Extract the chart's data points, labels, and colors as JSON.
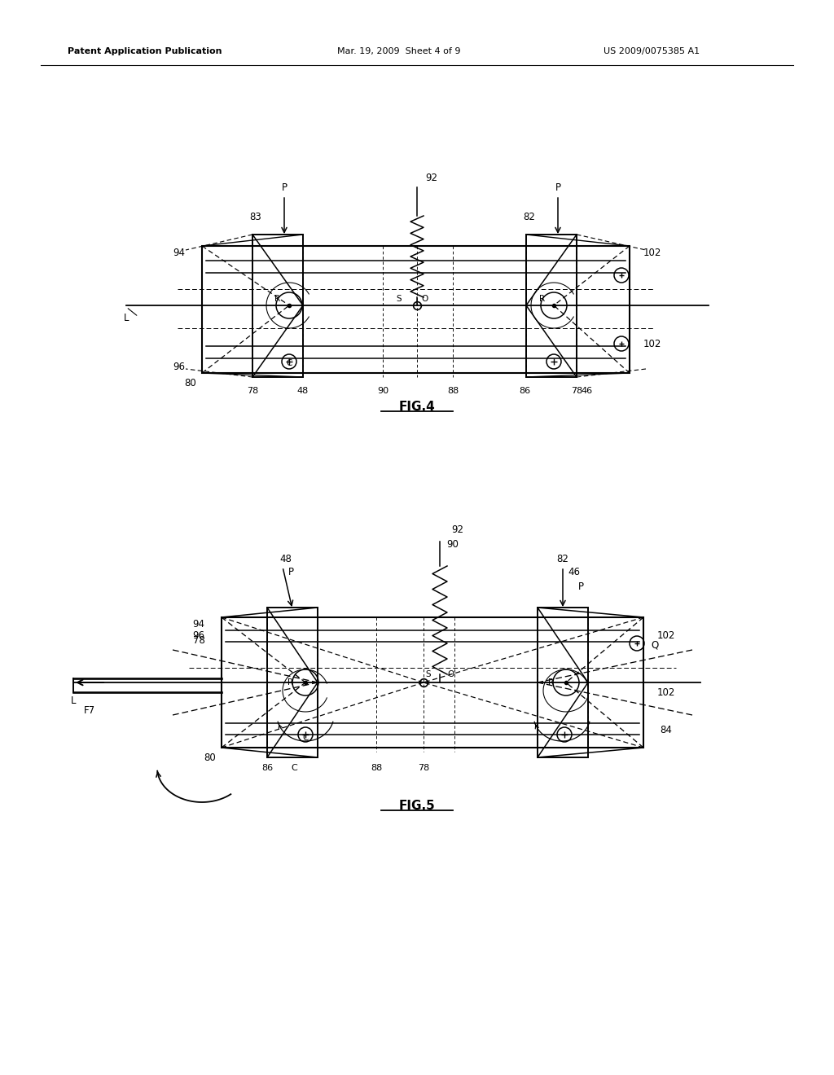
{
  "background_color": "#ffffff",
  "header_left": "Patent Application Publication",
  "header_mid": "Mar. 19, 2009  Sheet 4 of 9",
  "header_right": "US 2009/0075385 A1",
  "fig4_label": "FIG.4",
  "fig5_label": "FIG.5",
  "text_color": "#000000",
  "line_color": "#000000",
  "lw": 1.1
}
